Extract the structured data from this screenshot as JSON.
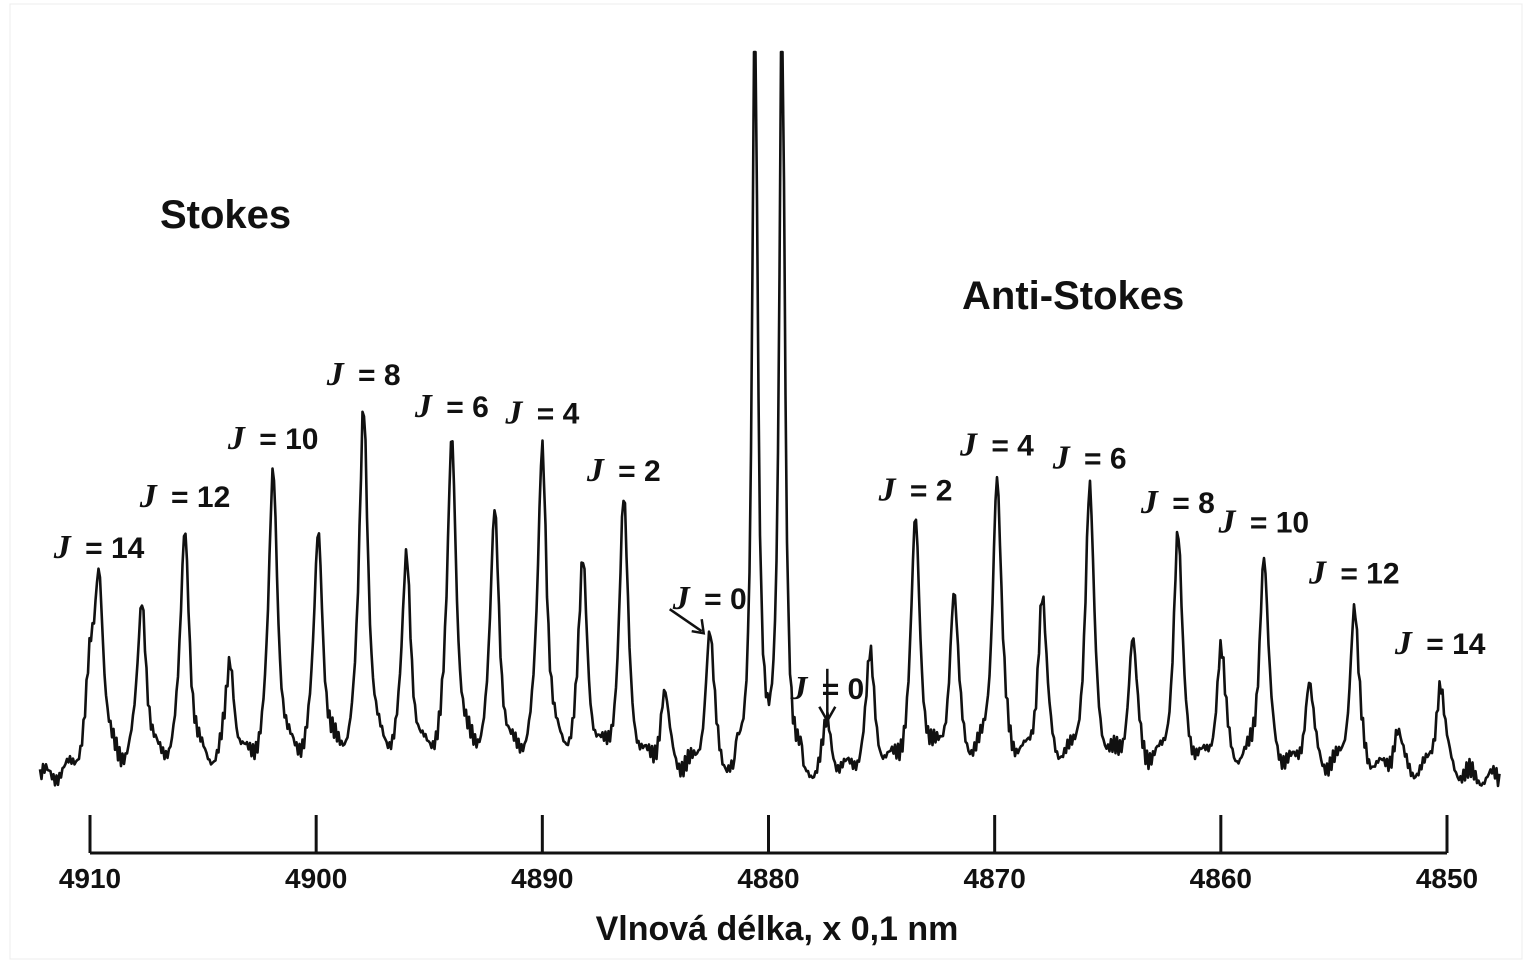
{
  "chart_data": {
    "type": "line",
    "title": "",
    "xlabel": "Vlnová délka, x 0,1 nm",
    "ylabel": "",
    "x_reversed": true,
    "xlim": [
      4850,
      4910
    ],
    "x_ticks": [
      "4910",
      "4900",
      "4890",
      "4880",
      "4870",
      "4860",
      "4850"
    ],
    "regions": {
      "stokes": "Stokes",
      "anti_stokes": "Anti-Stokes"
    },
    "central_line": {
      "x": 4880.0,
      "y": 1.0,
      "label": ""
    },
    "stokes_labels": [
      {
        "j": "J",
        "eq": "= 0",
        "x": 4882.6
      },
      {
        "j": "J",
        "eq": "= 2",
        "x": 4886.4
      },
      {
        "j": "J",
        "eq": "= 4",
        "x": 4890.0
      },
      {
        "j": "J",
        "eq": "= 6",
        "x": 4894.0
      },
      {
        "j": "J",
        "eq": "= 8",
        "x": 4897.9
      },
      {
        "j": "J",
        "eq": "= 10",
        "x": 4901.9
      },
      {
        "j": "J",
        "eq": "= 12",
        "x": 4905.8
      },
      {
        "j": "J",
        "eq": "= 14",
        "x": 4909.6
      }
    ],
    "anti_stokes_labels": [
      {
        "j": "J",
        "eq": "= 0",
        "x": 4877.4
      },
      {
        "j": "J",
        "eq": "= 2",
        "x": 4873.5
      },
      {
        "j": "J",
        "eq": "= 4",
        "x": 4869.9
      },
      {
        "j": "J",
        "eq": "= 6",
        "x": 4865.8
      },
      {
        "j": "J",
        "eq": "= 8",
        "x": 4861.9
      },
      {
        "j": "J",
        "eq": "= 10",
        "x": 4858.1
      },
      {
        "j": "J",
        "eq": "= 12",
        "x": 4854.1
      },
      {
        "j": "J",
        "eq": "= 14",
        "x": 4850.3
      }
    ],
    "peaks": [
      {
        "x": 4910.0,
        "y": 0.12
      },
      {
        "x": 4909.6,
        "y": 0.3
      },
      {
        "x": 4907.7,
        "y": 0.27
      },
      {
        "x": 4905.8,
        "y": 0.38
      },
      {
        "x": 4903.8,
        "y": 0.17
      },
      {
        "x": 4901.9,
        "y": 0.47
      },
      {
        "x": 4899.9,
        "y": 0.37
      },
      {
        "x": 4897.9,
        "y": 0.57
      },
      {
        "x": 4896.0,
        "y": 0.33
      },
      {
        "x": 4894.0,
        "y": 0.52
      },
      {
        "x": 4892.1,
        "y": 0.4
      },
      {
        "x": 4890.0,
        "y": 0.51
      },
      {
        "x": 4888.2,
        "y": 0.32
      },
      {
        "x": 4886.4,
        "y": 0.42
      },
      {
        "x": 4884.6,
        "y": 0.12
      },
      {
        "x": 4882.6,
        "y": 0.22
      },
      {
        "x": 4877.4,
        "y": 0.08
      },
      {
        "x": 4875.5,
        "y": 0.18
      },
      {
        "x": 4873.5,
        "y": 0.39
      },
      {
        "x": 4871.8,
        "y": 0.27
      },
      {
        "x": 4869.9,
        "y": 0.46
      },
      {
        "x": 4867.9,
        "y": 0.27
      },
      {
        "x": 4865.8,
        "y": 0.44
      },
      {
        "x": 4863.9,
        "y": 0.2
      },
      {
        "x": 4861.9,
        "y": 0.37
      },
      {
        "x": 4860.0,
        "y": 0.19
      },
      {
        "x": 4858.1,
        "y": 0.34
      },
      {
        "x": 4856.1,
        "y": 0.14
      },
      {
        "x": 4854.1,
        "y": 0.26
      },
      {
        "x": 4852.2,
        "y": 0.07
      },
      {
        "x": 4850.3,
        "y": 0.15
      }
    ]
  }
}
